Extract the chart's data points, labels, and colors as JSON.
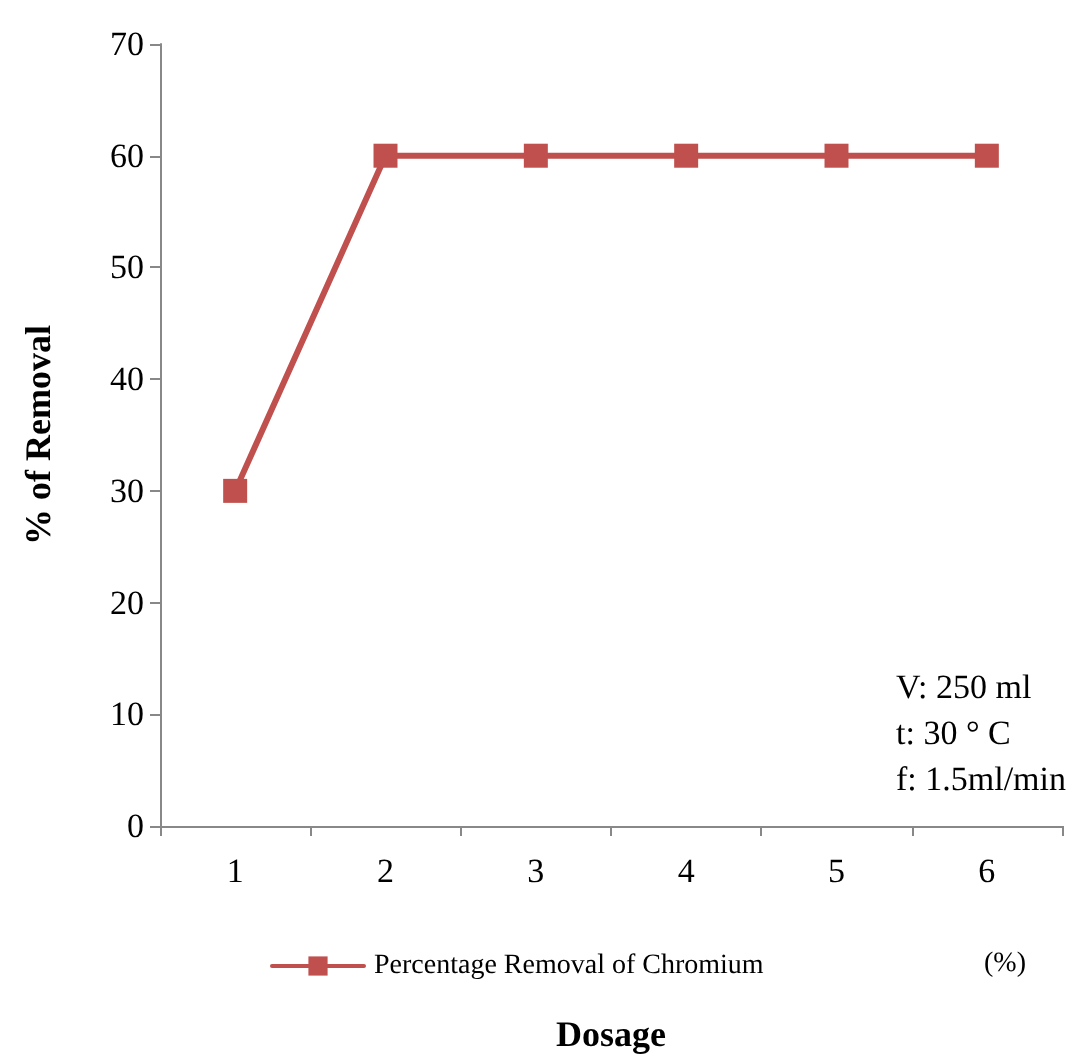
{
  "chart_data": {
    "type": "line",
    "xlabel": "Dosage",
    "ylabel": "% of Removal",
    "categories": [
      "1",
      "2",
      "3",
      "4",
      "5",
      "6"
    ],
    "series": [
      {
        "name": "Percentage Removal of Chromium",
        "color": "#c0504d",
        "values": [
          30,
          60,
          60,
          60,
          60,
          60
        ]
      }
    ],
    "ylim": [
      0,
      70
    ],
    "yticks": [
      0,
      10,
      20,
      30,
      40,
      50,
      60,
      70
    ],
    "grid": false,
    "legend": "bottom",
    "marker": "square",
    "line_style": "solid",
    "annotations": [
      "V: 250 ml",
      "t: 30 ° C",
      "f: 1.5ml/min",
      "(%)"
    ]
  }
}
